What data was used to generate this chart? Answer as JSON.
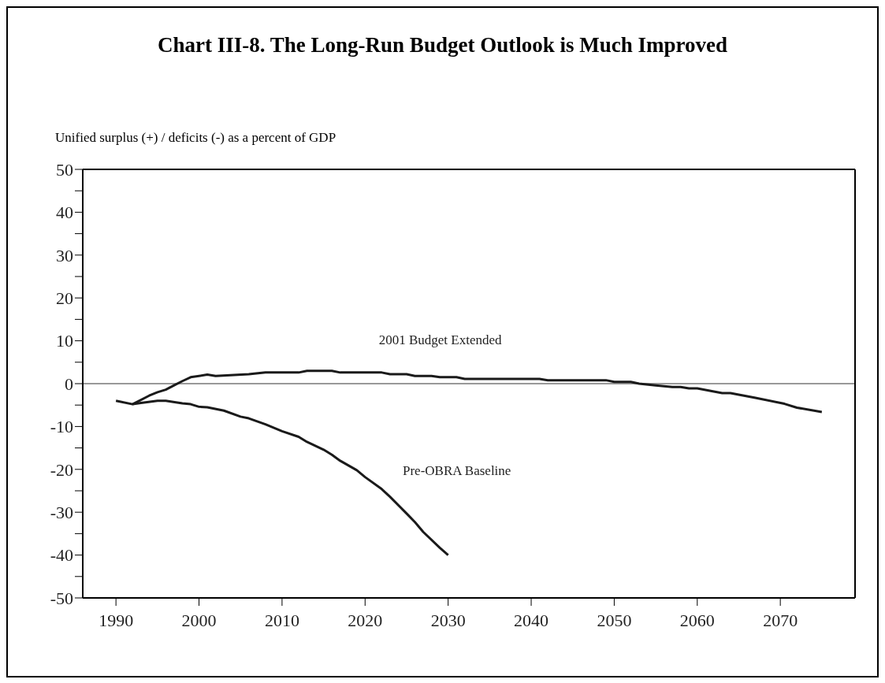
{
  "chart_data": {
    "type": "line",
    "title": "Chart III-8.  The Long-Run Budget Outlook is Much Improved",
    "ylabel": "Unified surplus (+) / deficits (-) as a percent of GDP",
    "xlim": [
      1986,
      2079
    ],
    "xticks": [
      1990,
      2000,
      2010,
      2020,
      2030,
      2040,
      2050,
      2060,
      2070
    ],
    "ylim": [
      -50,
      50
    ],
    "yticks": [
      -50,
      {
        "value": -45,
        "label": null
      },
      -40,
      {
        "value": -35,
        "label": null
      },
      -30,
      {
        "value": -25,
        "label": null
      },
      -20,
      {
        "value": -15,
        "label": null
      },
      -10,
      {
        "value": -5,
        "label": null
      },
      0,
      {
        "value": 5,
        "label": null
      },
      10,
      {
        "value": 15,
        "label": null
      },
      20,
      {
        "value": 25,
        "label": null
      },
      30,
      {
        "value": 35,
        "label": null
      },
      40,
      {
        "value": 45,
        "label": null
      },
      50
    ],
    "ref_lines": [
      {
        "axis": "y",
        "value": 0,
        "color": "#333333"
      }
    ],
    "series": [
      {
        "name": "2001 Budget Extended",
        "color": "#1a1a1a",
        "x": [
          1990,
          1992,
          1994,
          1995,
          1996,
          1997,
          1998,
          1999,
          2001,
          2002,
          2006,
          2008,
          2012,
          2013,
          2016,
          2017,
          2022,
          2023,
          2025,
          2026,
          2028,
          2029,
          2031,
          2032,
          2041,
          2042,
          2049,
          2050,
          2052,
          2053,
          2055,
          2057,
          2058,
          2059,
          2060,
          2063,
          2064,
          2067,
          2070.5,
          2072,
          2075
        ],
        "values": [
          -4,
          -4.8,
          -2.8,
          -2,
          -1.4,
          -0.4,
          0.6,
          1.5,
          2.1,
          1.8,
          2.2,
          2.6,
          2.6,
          3,
          3,
          2.6,
          2.6,
          2.2,
          2.2,
          1.8,
          1.8,
          1.5,
          1.5,
          1.1,
          1.1,
          0.8,
          0.8,
          0.4,
          0.4,
          0,
          -0.4,
          -0.8,
          -0.8,
          -1.1,
          -1.1,
          -2.2,
          -2.2,
          -3.3,
          -4.7,
          -5.6,
          -6.6
        ]
      },
      {
        "name": "Pre-OBRA Baseline",
        "color": "#1a1a1a",
        "x": [
          1992,
          1993,
          1995,
          1996,
          1998,
          1999,
          2000,
          2001,
          2003,
          2005,
          2006,
          2008,
          2010,
          2012,
          2013,
          2015,
          2016,
          2017,
          2019,
          2020,
          2022,
          2023,
          2025,
          2026,
          2027,
          2029,
          2030
        ],
        "values": [
          -4.8,
          -4.5,
          -4,
          -4,
          -4.6,
          -4.8,
          -5.4,
          -5.5,
          -6.3,
          -7.7,
          -8.1,
          -9.5,
          -11.1,
          -12.4,
          -13.6,
          -15.4,
          -16.6,
          -18,
          -20.2,
          -21.8,
          -24.6,
          -26.4,
          -30.3,
          -32.3,
          -34.6,
          -38.3,
          -40
        ]
      }
    ]
  }
}
